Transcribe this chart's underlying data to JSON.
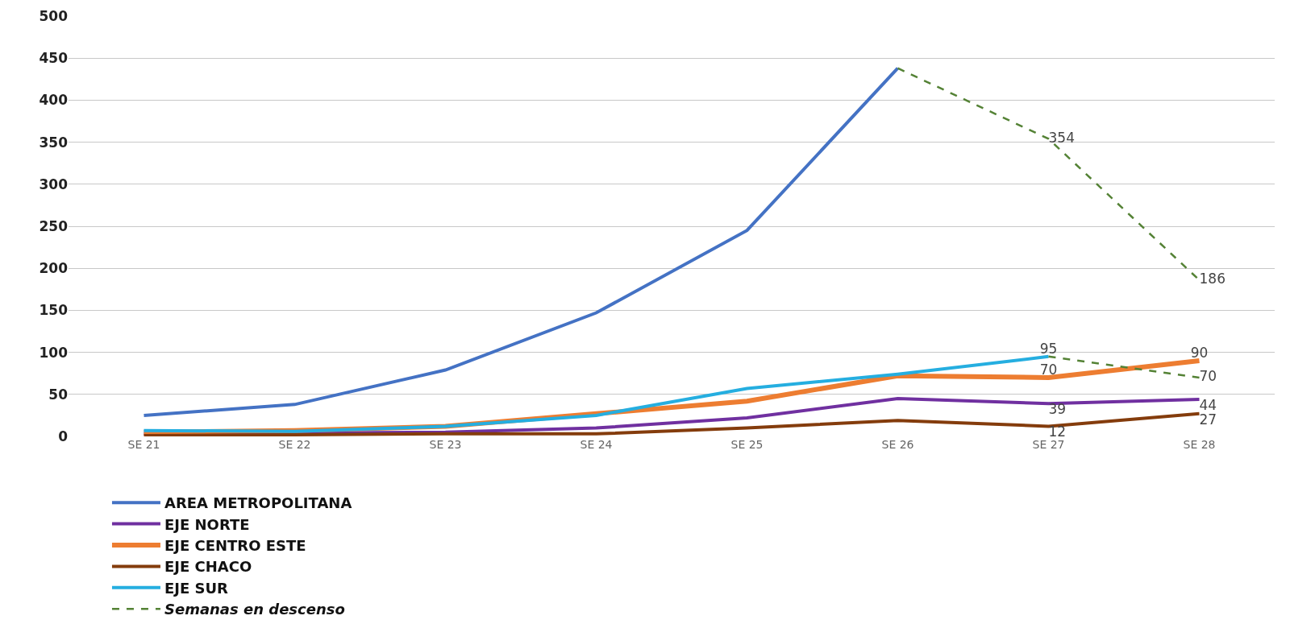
{
  "chart_data": {
    "type": "line",
    "categories": [
      "SE 21",
      "SE 22",
      "SE 23",
      "SE 24",
      "SE 25",
      "SE 26",
      "SE 27",
      "SE 28"
    ],
    "series": [
      {
        "name": "AREA METROPOLITANA",
        "color": "#4472c4",
        "values": [
          25,
          38,
          79,
          147,
          245,
          438,
          null,
          null
        ]
      },
      {
        "name": "EJE NORTE",
        "color": "#7030a0",
        "values": [
          3,
          4,
          5,
          10,
          22,
          45,
          39,
          44
        ],
        "value_labels": [
          null,
          null,
          null,
          null,
          null,
          null,
          "39",
          "44"
        ]
      },
      {
        "name": "EJE CENTRO ESTE",
        "color": "#ed7d31",
        "values": [
          5,
          7,
          12,
          27,
          42,
          72,
          70,
          90
        ],
        "value_labels": [
          null,
          null,
          null,
          null,
          null,
          null,
          "70",
          "90"
        ]
      },
      {
        "name": "EJE CHACO",
        "color": "#843c0c",
        "values": [
          1,
          2,
          3,
          3,
          10,
          19,
          12,
          27
        ],
        "value_labels": [
          null,
          null,
          null,
          null,
          null,
          null,
          "12",
          "27"
        ]
      },
      {
        "name": "EJE SUR",
        "color": "#25aee0",
        "values": [
          7,
          6,
          12,
          25,
          57,
          74,
          95,
          null
        ],
        "value_labels": [
          null,
          null,
          null,
          null,
          null,
          null,
          "95",
          null
        ]
      },
      {
        "name": "Semanas en descenso",
        "color": "#548235",
        "line_style": "dashed",
        "values": [
          null,
          null,
          null,
          null,
          null,
          438,
          354,
          186
        ],
        "value_labels": [
          null,
          null,
          null,
          null,
          null,
          null,
          "354",
          "186"
        ]
      },
      {
        "color": "#548235",
        "line_style": "dashed",
        "values": [
          null,
          null,
          null,
          null,
          null,
          null,
          95,
          70
        ],
        "value_labels": [
          null,
          null,
          null,
          null,
          null,
          null,
          null,
          "70"
        ]
      }
    ],
    "ylim": [
      0,
      500
    ],
    "yticks": [
      0,
      50,
      100,
      150,
      200,
      250,
      300,
      350,
      400,
      450,
      500
    ],
    "grid": "y",
    "legend": "bottom",
    "marker": "none",
    "line_style": "solid"
  }
}
